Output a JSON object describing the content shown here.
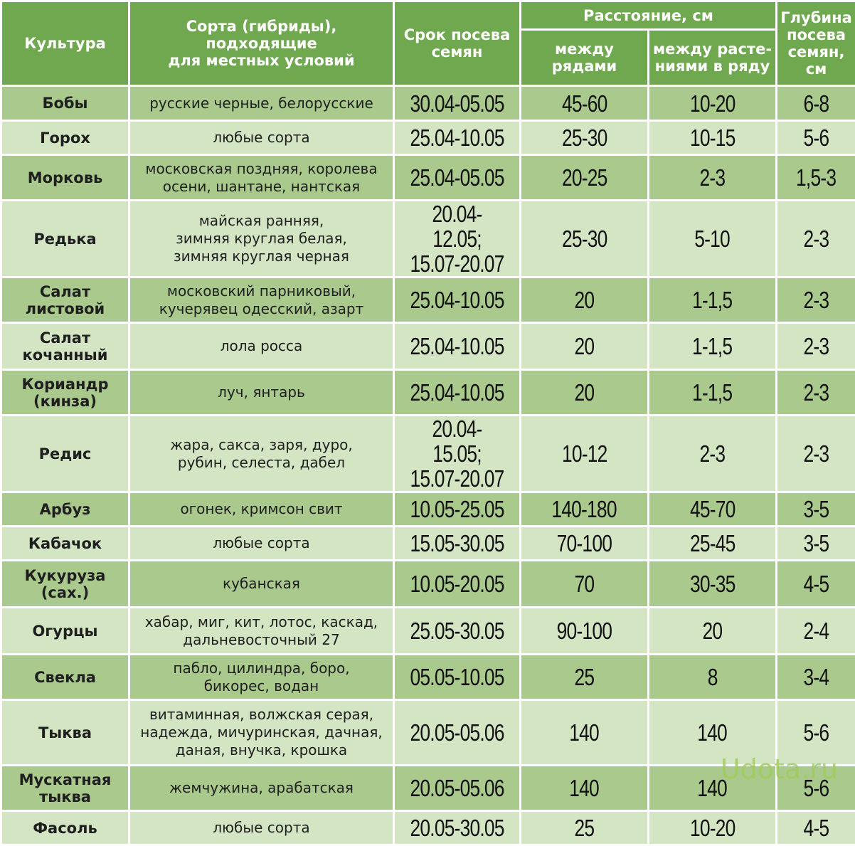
{
  "headers": {
    "crop": "Культура",
    "varieties": "Сорта (гибриды),\nподходящие\nдля местных условий",
    "sowing_period": "Срок посева\nсемян",
    "distance": "Расстояние, см",
    "between_rows": "между\nрядами",
    "in_row": "между расте-\nниями  в ряду",
    "depth": "Глубина\nпосева\nсемян,\nсм"
  },
  "rows": [
    {
      "crop": "Бобы",
      "varieties": "русские черные, белорусские",
      "period": "30.04-05.05",
      "rows": "45-60",
      "in_row": "10-20",
      "depth": "6-8"
    },
    {
      "crop": "Горох",
      "varieties": "любые сорта",
      "period": "25.04-10.05",
      "rows": "25-30",
      "in_row": "10-15",
      "depth": "5-6"
    },
    {
      "crop": "Морковь",
      "varieties": "московская поздняя, королева\nосени, шантане, нантская",
      "period": "25.04-05.05",
      "rows": "20-25",
      "in_row": "2-3",
      "depth": "1,5-3"
    },
    {
      "crop": "Редька",
      "varieties": "майская ранняя,\nзимняя круглая белая,\nзимняя круглая черная",
      "period": "20.04-12.05;\n15.07-20.07",
      "rows": "25-30",
      "in_row": "5-10",
      "depth": "2-3"
    },
    {
      "crop": "Салат\nлистовой",
      "varieties": "московский парниковый,\nкучерявец одесский, азарт",
      "period": "25.04-10.05",
      "rows": "20",
      "in_row": "1-1,5",
      "depth": "2-3"
    },
    {
      "crop": "Салат\nкочанный",
      "varieties": "лола росса",
      "period": "25.04-10.05",
      "rows": "20",
      "in_row": "1-1,5",
      "depth": "2-3"
    },
    {
      "crop": "Кориандр\n(кинза)",
      "varieties": "луч, янтарь",
      "period": "25.04-10.05",
      "rows": "20",
      "in_row": "1-1,5",
      "depth": "2-3"
    },
    {
      "crop": "Редис",
      "varieties": "жара, сакса, заря, дуро,\nрубин, селеста, дабел",
      "period": "20.04-15.05;\n15.07-20.07",
      "rows": "10-12",
      "in_row": "2-3",
      "depth": "2-3"
    },
    {
      "crop": "Арбуз",
      "varieties": "огонек, кримсон свит",
      "period": "10.05-25.05",
      "rows": "140-180",
      "in_row": "45-70",
      "depth": "3-5"
    },
    {
      "crop": "Кабачок",
      "varieties": "любые сорта",
      "period": "15.05-30.05",
      "rows": "70-100",
      "in_row": "25-45",
      "depth": "3-5"
    },
    {
      "crop": "Кукуруза\n(сах.)",
      "varieties": "кубанская",
      "period": "10.05-20.05",
      "rows": "70",
      "in_row": "30-35",
      "depth": "4-5"
    },
    {
      "crop": "Огурцы",
      "varieties": "хабар, миг, кит, лотос, каскад,\nдальневосточный 27",
      "period": "25.05-30.05",
      "rows": "90-100",
      "in_row": "20",
      "depth": "2-4"
    },
    {
      "crop": "Свекла",
      "varieties": "пабло, цилиндра, боро,\nбикорес, водан",
      "period": "05.05-10.05",
      "rows": "25",
      "in_row": "8",
      "depth": "3-4"
    },
    {
      "crop": "Тыква",
      "varieties": "витаминная, волжская серая,\nнадежда, мичуринская, дачная,\nданая, внучка, крошка",
      "period": "20.05-05.06",
      "rows": "140",
      "in_row": "140",
      "depth": "5-6"
    },
    {
      "crop": "Мускатная\nтыква",
      "varieties": "жемчужина, арабатская",
      "period": "20.05-05.06",
      "rows": "140",
      "in_row": "140",
      "depth": "5-6"
    },
    {
      "crop": "Фасоль",
      "varieties": "любые сорта",
      "period": "20.05-30.05",
      "rows": "25",
      "in_row": "10-20",
      "depth": "4-5"
    }
  ],
  "watermark": "Udota.ru",
  "colors": {
    "header": "#6fa84f",
    "row_dark": "#a9c98d",
    "row_light": "#d4e5c4",
    "watermark": "#a0cd5a"
  }
}
